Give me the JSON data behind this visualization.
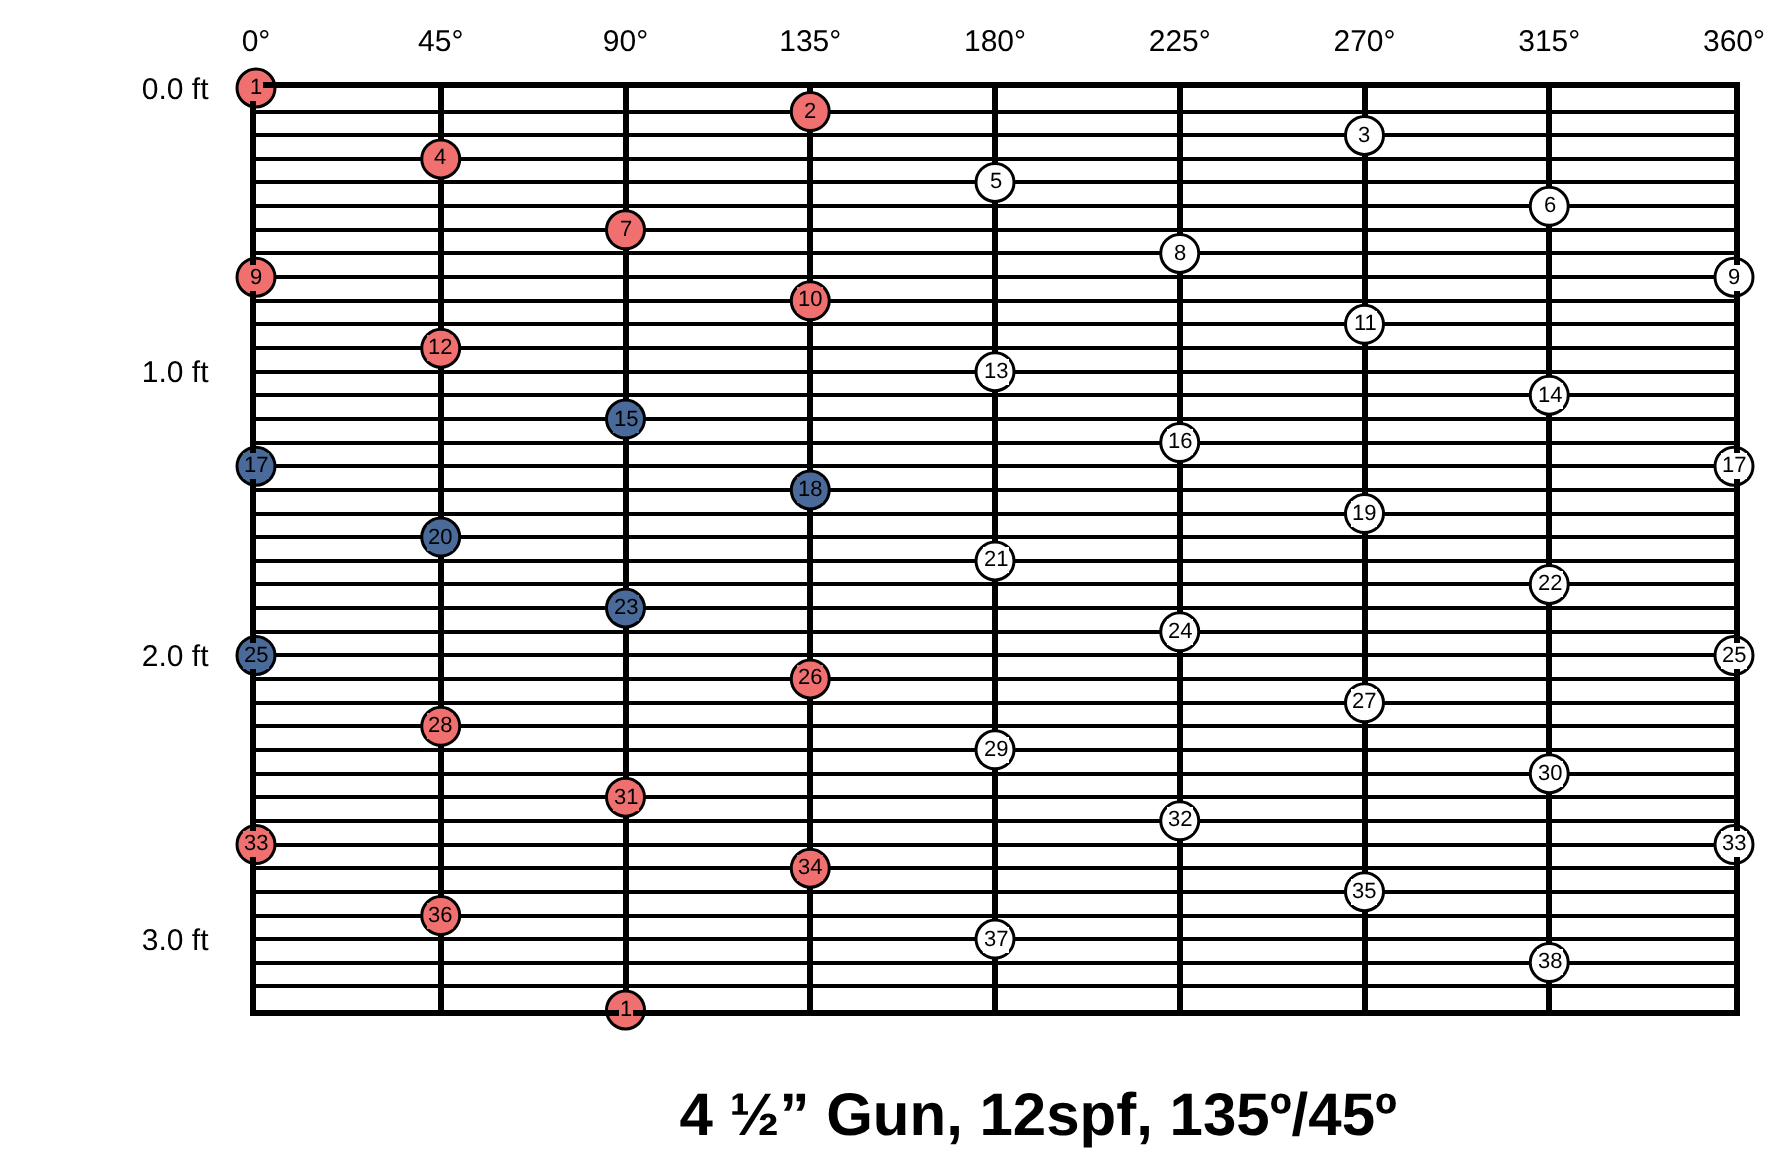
{
  "chart_data": {
    "type": "scatter",
    "title": "4 ½” Gun, 12spf, 135º/45º",
    "x": [
      0,
      135,
      270,
      45,
      180,
      315,
      90,
      225,
      0,
      360,
      135,
      270,
      45,
      180,
      315,
      90,
      225,
      0,
      360,
      135,
      270,
      45,
      180,
      315,
      90,
      225,
      0,
      360,
      135,
      270,
      45,
      180,
      315,
      90,
      225,
      0,
      360,
      135,
      270,
      45,
      180,
      315,
      90
    ],
    "series": [
      {
        "values": [
          0,
          0.083,
          0.167,
          0.25,
          0.333,
          0.417,
          0.5,
          0.583,
          0.667,
          0.667,
          0.75,
          0.833,
          0.917,
          1,
          1.083,
          1.167,
          1.25,
          1.333,
          1.333,
          1.417,
          1.5,
          1.583,
          1.667,
          1.75,
          1.833,
          1.917,
          2,
          2,
          2.083,
          2.167,
          2.25,
          2.333,
          2.417,
          2.5,
          2.583,
          2.667,
          2.667,
          2.75,
          2.833,
          2.917,
          3,
          3.083,
          3.25
        ],
        "colors": [
          "#f07070",
          "#f07070",
          "#ffffff",
          "#f07070",
          "#ffffff",
          "#ffffff",
          "#f07070",
          "#ffffff",
          "#f07070",
          "#ffffff",
          "#f07070",
          "#ffffff",
          "#f07070",
          "#ffffff",
          "#ffffff",
          "#4a6a9a",
          "#ffffff",
          "#4a6a9a",
          "#ffffff",
          "#4a6a9a",
          "#ffffff",
          "#4a6a9a",
          "#ffffff",
          "#ffffff",
          "#4a6a9a",
          "#ffffff",
          "#4a6a9a",
          "#ffffff",
          "#f07070",
          "#ffffff",
          "#f07070",
          "#ffffff",
          "#ffffff",
          "#f07070",
          "#ffffff",
          "#f07070",
          "#ffffff",
          "#f07070",
          "#ffffff",
          "#f07070",
          "#ffffff",
          "#ffffff",
          "#f07070"
        ]
      }
    ],
    "annotations": [
      {
        "text": "1",
        "x": 0,
        "y": 0
      },
      {
        "text": "2",
        "x": 135,
        "y": 0.083
      },
      {
        "text": "3",
        "x": 270,
        "y": 0.167
      },
      {
        "text": "4",
        "x": 45,
        "y": 0.25
      },
      {
        "text": "5",
        "x": 180,
        "y": 0.333
      },
      {
        "text": "6",
        "x": 315,
        "y": 0.417
      },
      {
        "text": "7",
        "x": 90,
        "y": 0.5
      },
      {
        "text": "8",
        "x": 225,
        "y": 0.583
      },
      {
        "text": "9",
        "x": 0,
        "y": 0.667
      },
      {
        "text": "9",
        "x": 360,
        "y": 0.667
      },
      {
        "text": "10",
        "x": 135,
        "y": 0.75
      },
      {
        "text": "11",
        "x": 270,
        "y": 0.833
      },
      {
        "text": "12",
        "x": 45,
        "y": 0.917
      },
      {
        "text": "13",
        "x": 180,
        "y": 1
      },
      {
        "text": "14",
        "x": 315,
        "y": 1.083
      },
      {
        "text": "15",
        "x": 90,
        "y": 1.167
      },
      {
        "text": "16",
        "x": 225,
        "y": 1.25
      },
      {
        "text": "17",
        "x": 0,
        "y": 1.333
      },
      {
        "text": "17",
        "x": 360,
        "y": 1.333
      },
      {
        "text": "18",
        "x": 135,
        "y": 1.417
      },
      {
        "text": "19",
        "x": 270,
        "y": 1.5
      },
      {
        "text": "20",
        "x": 45,
        "y": 1.583
      },
      {
        "text": "21",
        "x": 180,
        "y": 1.667
      },
      {
        "text": "22",
        "x": 315,
        "y": 1.75
      },
      {
        "text": "23",
        "x": 90,
        "y": 1.833
      },
      {
        "text": "24",
        "x": 225,
        "y": 1.917
      },
      {
        "text": "25",
        "x": 0,
        "y": 2
      },
      {
        "text": "25",
        "x": 360,
        "y": 2
      },
      {
        "text": "26",
        "x": 135,
        "y": 2.083
      },
      {
        "text": "27",
        "x": 270,
        "y": 2.167
      },
      {
        "text": "28",
        "x": 45,
        "y": 2.25
      },
      {
        "text": "29",
        "x": 180,
        "y": 2.333
      },
      {
        "text": "30",
        "x": 315,
        "y": 2.417
      },
      {
        "text": "31",
        "x": 90,
        "y": 2.5
      },
      {
        "text": "32",
        "x": 225,
        "y": 2.583
      },
      {
        "text": "33",
        "x": 0,
        "y": 2.667
      },
      {
        "text": "33",
        "x": 360,
        "y": 2.667
      },
      {
        "text": "34",
        "x": 135,
        "y": 2.75
      },
      {
        "text": "35",
        "x": 270,
        "y": 2.833
      },
      {
        "text": "36",
        "x": 45,
        "y": 2.917
      },
      {
        "text": "37",
        "x": 180,
        "y": 3
      },
      {
        "text": "38",
        "x": 315,
        "y": 3.083
      },
      {
        "text": "1",
        "x": 90,
        "y": 3.25
      }
    ],
    "marker": "circle",
    "grid": true,
    "xlim": [
      0,
      360
    ],
    "xticks": [
      {
        "value": 0,
        "label": "0°"
      },
      {
        "value": 45,
        "label": "45°"
      },
      {
        "value": 90,
        "label": "90°"
      },
      {
        "value": 135,
        "label": "135°"
      },
      {
        "value": 180,
        "label": "180°"
      },
      {
        "value": 225,
        "label": "225°"
      },
      {
        "value": 270,
        "label": "270°"
      },
      {
        "value": 315,
        "label": "315°"
      },
      {
        "value": 360,
        "label": "360°"
      }
    ],
    "ylim": [
      3.25,
      0
    ],
    "yticks": [
      {
        "value": 0,
        "label": "0.0 ft"
      },
      {
        "value": 0.083,
        "label": null
      },
      {
        "value": 0.167,
        "label": null
      },
      {
        "value": 0.25,
        "label": null
      },
      {
        "value": 0.333,
        "label": null
      },
      {
        "value": 0.417,
        "label": null
      },
      {
        "value": 0.5,
        "label": null
      },
      {
        "value": 0.583,
        "label": null
      },
      {
        "value": 0.667,
        "label": null
      },
      {
        "value": 0.75,
        "label": null
      },
      {
        "value": 0.833,
        "label": null
      },
      {
        "value": 0.917,
        "label": null
      },
      {
        "value": 1,
        "label": "1.0 ft"
      },
      {
        "value": 1.083,
        "label": null
      },
      {
        "value": 1.167,
        "label": null
      },
      {
        "value": 1.25,
        "label": null
      },
      {
        "value": 1.333,
        "label": null
      },
      {
        "value": 1.417,
        "label": null
      },
      {
        "value": 1.5,
        "label": null
      },
      {
        "value": 1.583,
        "label": null
      },
      {
        "value": 1.667,
        "label": null
      },
      {
        "value": 1.75,
        "label": null
      },
      {
        "value": 1.833,
        "label": null
      },
      {
        "value": 1.917,
        "label": null
      },
      {
        "value": 2,
        "label": "2.0 ft"
      },
      {
        "value": 2.083,
        "label": null
      },
      {
        "value": 2.167,
        "label": null
      },
      {
        "value": 2.25,
        "label": null
      },
      {
        "value": 2.333,
        "label": null
      },
      {
        "value": 2.417,
        "label": null
      },
      {
        "value": 2.5,
        "label": null
      },
      {
        "value": 2.583,
        "label": null
      },
      {
        "value": 2.667,
        "label": null
      },
      {
        "value": 2.75,
        "label": null
      },
      {
        "value": 2.833,
        "label": null
      },
      {
        "value": 2.917,
        "label": null
      },
      {
        "value": 3,
        "label": "3.0 ft"
      },
      {
        "value": 3.083,
        "label": null
      },
      {
        "value": 3.167,
        "label": null
      },
      {
        "value": 3.25,
        "label": null
      }
    ]
  }
}
